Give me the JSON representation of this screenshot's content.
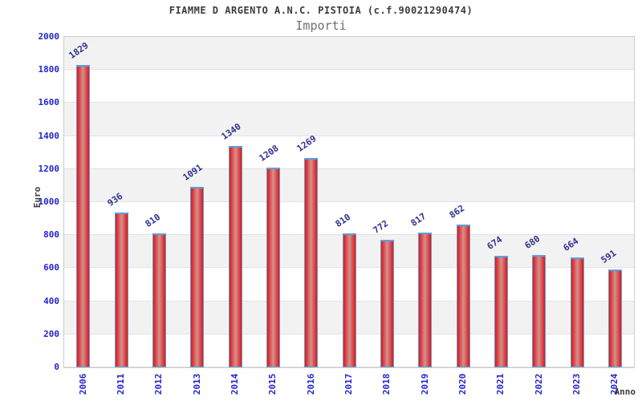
{
  "chart_data": {
    "type": "bar",
    "title": "FIAMME D ARGENTO A.N.C. PISTOIA (c.f.90021290474)",
    "subtitle": "Importi",
    "xlabel": "Anno",
    "ylabel": "Euro",
    "categories": [
      "2006",
      "2011",
      "2012",
      "2013",
      "2014",
      "2015",
      "2016",
      "2017",
      "2018",
      "2019",
      "2020",
      "2021",
      "2022",
      "2023",
      "2024"
    ],
    "values": [
      1829,
      936,
      810,
      1091,
      1340,
      1208,
      1269,
      810,
      772,
      817,
      862,
      674,
      680,
      664,
      591
    ],
    "ylim": [
      0,
      2000
    ],
    "ytick_interval": 200,
    "ytick_labels": [
      "0",
      "200",
      "400",
      "600",
      "800",
      "1000",
      "1200",
      "1400",
      "1600",
      "1800",
      "2000"
    ],
    "legend": "none",
    "grid": "horizontal bands alternating gray/white every 200 units, gray topmost",
    "bar_value_label_rotation_deg": -35,
    "x_tick_label_rotation_deg": -90,
    "colors": {
      "bar_fill_edge": "#dc1a1a",
      "bar_fill_center": "#cf8e8e",
      "bar_border": "#5b9fdc",
      "tick_label": "#2424cc",
      "bar_value_label": "#31318f",
      "title": "#3c3c3c",
      "subtitle": "#6f6f6f",
      "axis_title": "#3c3c3c",
      "band_gray": "#f2f2f2",
      "band_white": "#ffffff",
      "gridline": "#e2e2e2",
      "plot_border": "#cccccc"
    }
  }
}
